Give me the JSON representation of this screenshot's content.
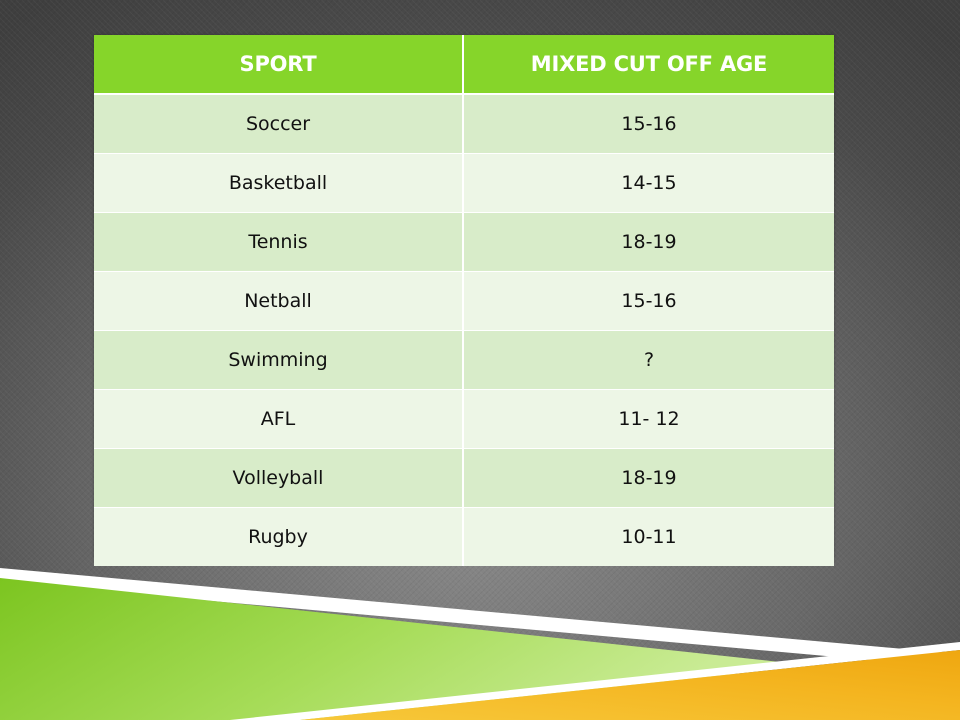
{
  "table": {
    "headers": [
      "SPORT",
      "MIXED CUT OFF AGE"
    ],
    "rows": [
      {
        "sport": "Soccer",
        "age": "15-16"
      },
      {
        "sport": "Basketball",
        "age": "14-15"
      },
      {
        "sport": "Tennis",
        "age": "18-19"
      },
      {
        "sport": "Netball",
        "age": "15-16"
      },
      {
        "sport": "Swimming",
        "age": "?"
      },
      {
        "sport": "AFL",
        "age": "11- 12"
      },
      {
        "sport": "Volleyball",
        "age": "18-19"
      },
      {
        "sport": "Rugby",
        "age": "10-11"
      }
    ]
  },
  "colors": {
    "header_green": "#86d52a",
    "row_dark": "#d8ecc9",
    "row_light": "#edf6e6",
    "decor_green": "#8ed12b",
    "decor_yellow": "#f2b41a"
  }
}
